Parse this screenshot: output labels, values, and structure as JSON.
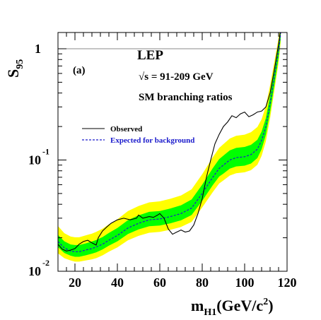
{
  "chart_data": {
    "type": "line",
    "panel_label": "(a)",
    "annotations": [
      "LEP",
      "√s = 91-209 GeV",
      "SM branching ratios"
    ],
    "xlabel": {
      "main": "m",
      "sub": "H1",
      "rest": "(GeV/c",
      "sup": "2",
      "close": ")"
    },
    "ylabel": {
      "main": "S",
      "sub": "95"
    },
    "xlim": [
      12,
      120
    ],
    "ylim": [
      0.01,
      1.4
    ],
    "yscale": "log",
    "x_ticks": [
      20,
      40,
      60,
      80,
      100,
      120
    ],
    "y_tick_labels": [
      {
        "value": 1,
        "base": "1",
        "exp": ""
      },
      {
        "value": 0.1,
        "base": "10",
        "exp": "-1"
      },
      {
        "value": 0.01,
        "base": "10",
        "exp": "-2"
      }
    ],
    "reference_line": 1,
    "legend": {
      "placement": "upper-left",
      "entries": [
        {
          "label": "Observed",
          "style": "solid",
          "color": "#000000"
        },
        {
          "label": "Expected for background",
          "style": "dashed",
          "color": "#1a1acc"
        }
      ]
    },
    "colors": {
      "band_2sigma": "#ffff00",
      "band_1sigma": "#00ff00",
      "observed": "#000000",
      "expected": "#1a1acc",
      "reference": "#888888"
    },
    "expected_x": [
      12,
      15,
      18,
      20,
      22,
      25,
      28,
      30,
      33,
      36,
      40,
      45,
      50,
      55,
      60,
      65,
      70,
      75,
      80,
      85,
      88,
      90,
      93,
      96,
      100,
      103,
      106,
      108,
      110,
      112,
      114,
      116,
      117
    ],
    "expected_y": [
      0.0185,
      0.0162,
      0.0152,
      0.015,
      0.015,
      0.0155,
      0.016,
      0.0165,
      0.0175,
      0.019,
      0.021,
      0.0245,
      0.027,
      0.029,
      0.0295,
      0.031,
      0.033,
      0.037,
      0.05,
      0.07,
      0.084,
      0.09,
      0.1,
      0.105,
      0.107,
      0.112,
      0.125,
      0.15,
      0.2,
      0.32,
      0.55,
      0.95,
      1.4
    ],
    "band_1sigma_lower": [
      0.0165,
      0.0146,
      0.0138,
      0.0135,
      0.0135,
      0.0139,
      0.0144,
      0.0148,
      0.0157,
      0.017,
      0.0186,
      0.0216,
      0.0238,
      0.0254,
      0.0258,
      0.027,
      0.0287,
      0.032,
      0.043,
      0.0595,
      0.071,
      0.0755,
      0.0835,
      0.0875,
      0.089,
      0.093,
      0.104,
      0.125,
      0.168,
      0.27,
      0.47,
      0.83,
      1.25
    ],
    "band_1sigma_upper": [
      0.0212,
      0.0186,
      0.0174,
      0.0172,
      0.0172,
      0.0178,
      0.0185,
      0.0191,
      0.0203,
      0.0221,
      0.0245,
      0.0288,
      0.0318,
      0.0342,
      0.0348,
      0.0367,
      0.0392,
      0.0442,
      0.06,
      0.0845,
      0.102,
      0.1095,
      0.122,
      0.1285,
      0.131,
      0.137,
      0.152,
      0.18,
      0.238,
      0.38,
      0.64,
      1.09,
      1.5
    ],
    "band_2sigma_lower": [
      0.0145,
      0.0131,
      0.0125,
      0.0122,
      0.0122,
      0.0125,
      0.0128,
      0.0131,
      0.0139,
      0.015,
      0.0164,
      0.019,
      0.0208,
      0.0222,
      0.0226,
      0.0236,
      0.025,
      0.0278,
      0.0375,
      0.0515,
      0.0615,
      0.0655,
      0.0725,
      0.076,
      0.0775,
      0.081,
      0.0905,
      0.109,
      0.147,
      0.238,
      0.42,
      0.75,
      1.15
    ],
    "band_2sigma_upper": [
      0.0255,
      0.022,
      0.0205,
      0.0202,
      0.0202,
      0.021,
      0.0218,
      0.0226,
      0.0241,
      0.0264,
      0.0293,
      0.0348,
      0.0386,
      0.0416,
      0.0425,
      0.0448,
      0.048,
      0.0545,
      0.0745,
      0.106,
      0.1285,
      0.139,
      0.156,
      0.165,
      0.169,
      0.178,
      0.198,
      0.233,
      0.305,
      0.47,
      0.76,
      1.25,
      1.6
    ],
    "observed_x": [
      12,
      14,
      16,
      18,
      20,
      22,
      24,
      26,
      28,
      30,
      31,
      33,
      35,
      37,
      40,
      43,
      46,
      49,
      50,
      52,
      55,
      57,
      59,
      60,
      62,
      64,
      66,
      68,
      70,
      72,
      74,
      76,
      78,
      80,
      82,
      84,
      86,
      88,
      90,
      92,
      94,
      96,
      98,
      100,
      102,
      104,
      106,
      108,
      110,
      112,
      114,
      116,
      117
    ],
    "observed_y": [
      0.0175,
      0.0158,
      0.0152,
      0.0155,
      0.016,
      0.0175,
      0.0185,
      0.019,
      0.018,
      0.0172,
      0.02,
      0.023,
      0.025,
      0.027,
      0.029,
      0.03,
      0.029,
      0.03,
      0.032,
      0.03,
      0.031,
      0.0305,
      0.032,
      0.033,
      0.03,
      0.024,
      0.0215,
      0.0225,
      0.0235,
      0.0225,
      0.023,
      0.026,
      0.033,
      0.045,
      0.07,
      0.1,
      0.14,
      0.17,
      0.2,
      0.22,
      0.25,
      0.24,
      0.26,
      0.27,
      0.245,
      0.255,
      0.27,
      0.275,
      0.3,
      0.4,
      0.65,
      1.1,
      1.5
    ]
  }
}
